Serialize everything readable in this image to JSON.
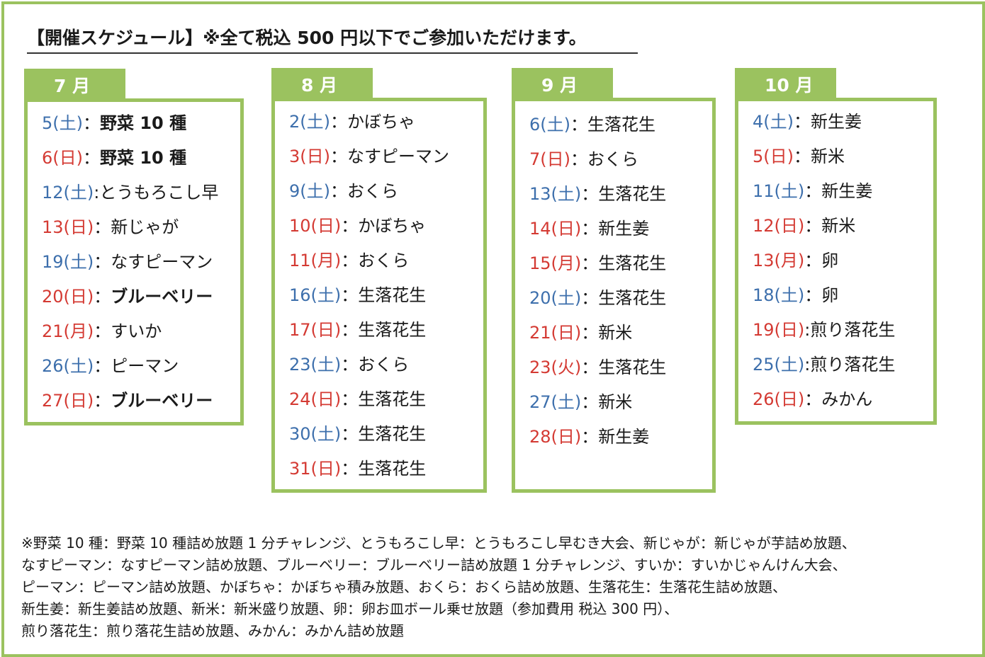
{
  "title": "【開催スケジュール】※全て税込 500 円以下でご参加いただけます。",
  "months": [
    {
      "label": "7 月",
      "entries": [
        {
          "date": "5(土)",
          "sep": "：",
          "item": "野菜 10 種",
          "day": "sat",
          "bold": true
        },
        {
          "date": "6(日)",
          "sep": "：",
          "item": "野菜 10 種",
          "day": "sun",
          "bold": true
        },
        {
          "date": "12(土)",
          "sep": ":",
          "item": "とうもろこし早",
          "day": "sat",
          "bold": false
        },
        {
          "date": "13(日)",
          "sep": "：",
          "item": "新じゃが",
          "day": "sun",
          "bold": false
        },
        {
          "date": "19(土)",
          "sep": "：",
          "item": "なすピーマン",
          "day": "sat",
          "bold": false
        },
        {
          "date": "20(日)",
          "sep": "：",
          "item": "ブルーベリー",
          "day": "sun",
          "bold": true
        },
        {
          "date": "21(月)",
          "sep": "：",
          "item": "すいか",
          "day": "sun",
          "bold": false
        },
        {
          "date": "26(土)",
          "sep": "：",
          "item": "ピーマン",
          "day": "sat",
          "bold": false
        },
        {
          "date": "27(日)",
          "sep": "：",
          "item": "ブルーベリー",
          "day": "sun",
          "bold": true
        }
      ]
    },
    {
      "label": "8 月",
      "entries": [
        {
          "date": "2(土)",
          "sep": "：",
          "item": "かぼちゃ",
          "day": "sat",
          "bold": false
        },
        {
          "date": "3(日)",
          "sep": "：",
          "item": "なすピーマン",
          "day": "sun",
          "bold": false
        },
        {
          "date": "9(土)",
          "sep": "：",
          "item": "おくら",
          "day": "sat",
          "bold": false
        },
        {
          "date": "10(日)",
          "sep": "：",
          "item": "かぼちゃ",
          "day": "sun",
          "bold": false
        },
        {
          "date": "11(月)",
          "sep": "：",
          "item": "おくら",
          "day": "sun",
          "bold": false
        },
        {
          "date": "16(土)",
          "sep": "：",
          "item": "生落花生",
          "day": "sat",
          "bold": false
        },
        {
          "date": "17(日)",
          "sep": "：",
          "item": "生落花生",
          "day": "sun",
          "bold": false
        },
        {
          "date": "23(土)",
          "sep": "：",
          "item": "おくら",
          "day": "sat",
          "bold": false
        },
        {
          "date": "24(日)",
          "sep": "：",
          "item": "生落花生",
          "day": "sun",
          "bold": false
        },
        {
          "date": "30(土)",
          "sep": "：",
          "item": "生落花生",
          "day": "sat",
          "bold": false
        },
        {
          "date": "31(日)",
          "sep": "：",
          "item": "生落花生",
          "day": "sun",
          "bold": false
        }
      ]
    },
    {
      "label": "9 月",
      "entries": [
        {
          "date": "6(土)",
          "sep": "：",
          "item": "生落花生",
          "day": "sat",
          "bold": false
        },
        {
          "date": "7(日)",
          "sep": "：",
          "item": "おくら",
          "day": "sun",
          "bold": false
        },
        {
          "date": "13(土)",
          "sep": "：",
          "item": "生落花生",
          "day": "sat",
          "bold": false
        },
        {
          "date": "14(日)",
          "sep": "：",
          "item": "新生姜",
          "day": "sun",
          "bold": false
        },
        {
          "date": "15(月)",
          "sep": "：",
          "item": "生落花生",
          "day": "sun",
          "bold": false
        },
        {
          "date": "20(土)",
          "sep": "：",
          "item": "生落花生",
          "day": "sat",
          "bold": false
        },
        {
          "date": "21(日)",
          "sep": "：",
          "item": "新米",
          "day": "sun",
          "bold": false
        },
        {
          "date": "23(火)",
          "sep": "：",
          "item": "生落花生",
          "day": "sun",
          "bold": false
        },
        {
          "date": "27(土)",
          "sep": "：",
          "item": "新米",
          "day": "sat",
          "bold": false
        },
        {
          "date": "28(日)",
          "sep": "：",
          "item": "新生姜",
          "day": "sun",
          "bold": false
        }
      ]
    },
    {
      "label": "10 月",
      "entries": [
        {
          "date": "4(土)",
          "sep": "：",
          "item": "新生姜",
          "day": "sat",
          "bold": false
        },
        {
          "date": "5(日)",
          "sep": "：",
          "item": "新米",
          "day": "sun",
          "bold": false
        },
        {
          "date": "11(土)",
          "sep": "：",
          "item": "新生姜",
          "day": "sat",
          "bold": false
        },
        {
          "date": "12(日)",
          "sep": "：",
          "item": "新米",
          "day": "sun",
          "bold": false
        },
        {
          "date": "13(月)",
          "sep": "：",
          "item": "卵",
          "day": "sun",
          "bold": false
        },
        {
          "date": "18(土)",
          "sep": "：",
          "item": "卵",
          "day": "sat",
          "bold": false
        },
        {
          "date": "19(日)",
          "sep": ":",
          "item": "煎り落花生",
          "day": "sun",
          "bold": false
        },
        {
          "date": "25(土)",
          "sep": ":",
          "item": "煎り落花生",
          "day": "sat",
          "bold": false
        },
        {
          "date": "26(日)",
          "sep": "：",
          "item": "みかん",
          "day": "sun",
          "bold": false
        }
      ]
    }
  ],
  "footnotes": [
    "※野菜 10 種：野菜 10 種詰め放題 1 分チャレンジ、とうもろこし早：とうもろこし早むき大会、新じゃが：新じゃが芋詰め放題、",
    "なすピーマン：なすピーマン詰め放題、ブルーベリー：ブルーベリー詰め放題 1 分チャレンジ、すいか：すいかじゃんけん大会、",
    "ピーマン：ピーマン詰め放題、かぼちゃ：かぼちゃ積み放題、おくら：おくら詰め放題、生落花生：生落花生詰め放題、",
    "新生姜：新生姜詰め放題、新米：新米盛り放題、卵：卵お皿ボール乗せ放題（参加費用 税込 300 円）、",
    "煎り落花生：煎り落花生詰め放題、みかん：みかん詰め放題"
  ],
  "colors": {
    "accent_green": "#9bc25f",
    "saturday_blue": "#3d6fac",
    "sunday_red": "#d43a33"
  }
}
